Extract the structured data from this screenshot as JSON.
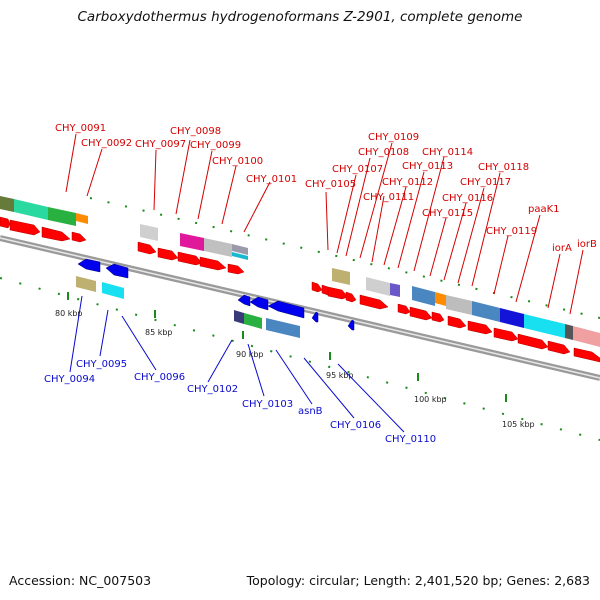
{
  "title": "Carboxydothermus hydrogenoformans Z-2901, complete genome",
  "footer": {
    "accession": "Accession: NC_007503",
    "summary": "Topology: circular; Length: 2,401,520 bp; Genes: 2,683"
  },
  "colors": {
    "forward_arrow": "#ff0000",
    "reverse_arrow": "#0000ee",
    "top_label": "#d40000",
    "bottom_label": "#0a0ad0",
    "backbone": "#888888",
    "dots": "#1a8a1a"
  },
  "scale_ticks": [
    "80 kbp",
    "85 kbp",
    "90 kbp",
    "95 kbp",
    "100 kbp",
    "105 kbp"
  ],
  "top_genes": [
    "CHY_0091",
    "CHY_0092",
    "CHY_0097",
    "CHY_0098",
    "CHY_0099",
    "CHY_0100",
    "CHY_0101",
    "CHY_0105",
    "CHY_0107",
    "CHY_0108",
    "CHY_0109",
    "CHY_0111",
    "CHY_0112",
    "CHY_0113",
    "CHY_0114",
    "CHY_0115",
    "CHY_0116",
    "CHY_0117",
    "CHY_0118",
    "CHY_0119",
    "paaK1",
    "iorA",
    "iorB"
  ],
  "bottom_genes": [
    "CHY_0094",
    "CHY_0095",
    "CHY_0096",
    "CHY_0102",
    "CHY_0103",
    "asnB",
    "CHY_0106",
    "CHY_0110"
  ]
}
